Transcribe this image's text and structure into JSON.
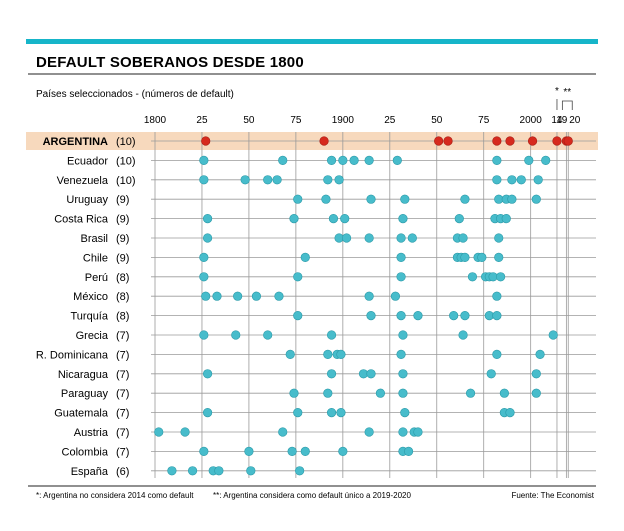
{
  "chart_data": {
    "type": "scatter",
    "title": "DEFAULT SOBERANOS DESDE 1800",
    "subtitle": "Países seleccionados  - (números de default)",
    "xlim": [
      1800,
      2022
    ],
    "x_ticks": [
      {
        "value": 1800,
        "label": "1800"
      },
      {
        "value": 1825,
        "label": "25"
      },
      {
        "value": 1850,
        "label": "50"
      },
      {
        "value": 1875,
        "label": "75"
      },
      {
        "value": 1900,
        "label": "1900"
      },
      {
        "value": 1925,
        "label": "25"
      },
      {
        "value": 1950,
        "label": "50"
      },
      {
        "value": 1975,
        "label": "75"
      },
      {
        "value": 2000,
        "label": "2000"
      },
      {
        "value": 2014,
        "label": "14"
      },
      {
        "value": 2019,
        "label": "19"
      },
      {
        "value": 2020,
        "label": "20"
      }
    ],
    "tick_marks": {
      "single": "*",
      "double": "**"
    },
    "colors": {
      "argentina": "#d62a1e",
      "others": "#47bccb",
      "highlight": "#f7d9bd",
      "accent": "#16b5c9",
      "grid": "#9a9a9a"
    },
    "series": [
      {
        "name": "ARGENTINA",
        "count": "(10)",
        "highlight": true,
        "years": [
          1827,
          1890,
          1951,
          1956,
          1982,
          1989,
          2001,
          2014,
          2019,
          2020
        ]
      },
      {
        "name": "Ecuador",
        "count": "(10)",
        "years": [
          1826,
          1868,
          1894,
          1900,
          1906,
          1914,
          1929,
          1982,
          1999,
          2008
        ]
      },
      {
        "name": "Venezuela",
        "count": "(10)",
        "years": [
          1826,
          1848,
          1860,
          1865,
          1892,
          1898,
          1982,
          1990,
          1995,
          2004
        ]
      },
      {
        "name": "Uruguay",
        "count": "(9)",
        "years": [
          1876,
          1891,
          1915,
          1933,
          1965,
          1983,
          1987,
          1990,
          2003
        ]
      },
      {
        "name": "Costa Rica",
        "count": "(9)",
        "years": [
          1828,
          1874,
          1895,
          1901,
          1932,
          1962,
          1981,
          1984,
          1987
        ]
      },
      {
        "name": "Brasil",
        "count": "(9)",
        "years": [
          1828,
          1898,
          1902,
          1914,
          1931,
          1937,
          1961,
          1964,
          1983
        ]
      },
      {
        "name": "Chile",
        "count": "(9)",
        "years": [
          1826,
          1880,
          1931,
          1961,
          1963,
          1965,
          1972,
          1974,
          1983
        ]
      },
      {
        "name": "Perú",
        "count": "(8)",
        "years": [
          1826,
          1876,
          1931,
          1969,
          1976,
          1978,
          1980,
          1984
        ]
      },
      {
        "name": "México",
        "count": "(8)",
        "years": [
          1827,
          1833,
          1844,
          1854,
          1866,
          1914,
          1928,
          1982
        ]
      },
      {
        "name": "Turquía",
        "count": "(8)",
        "years": [
          1876,
          1915,
          1931,
          1940,
          1959,
          1965,
          1978,
          1982
        ]
      },
      {
        "name": "Grecia",
        "count": "(7)",
        "years": [
          1826,
          1843,
          1860,
          1894,
          1932,
          1964,
          2012
        ]
      },
      {
        "name": "R. Dominicana",
        "count": "(7)",
        "years": [
          1872,
          1892,
          1897,
          1899,
          1931,
          1982,
          2005
        ]
      },
      {
        "name": "Nicaragua",
        "count": "(7)",
        "years": [
          1828,
          1894,
          1911,
          1915,
          1932,
          1979,
          2003
        ]
      },
      {
        "name": "Paraguay",
        "count": "(7)",
        "years": [
          1874,
          1892,
          1920,
          1932,
          1968,
          1986,
          2003
        ]
      },
      {
        "name": "Guatemala",
        "count": "(7)",
        "years": [
          1828,
          1876,
          1894,
          1899,
          1933,
          1986,
          1989
        ]
      },
      {
        "name": "Austria",
        "count": "(7)",
        "years": [
          1802,
          1816,
          1868,
          1914,
          1932,
          1938,
          1940
        ]
      },
      {
        "name": "Colombia",
        "count": "(7)",
        "years": [
          1826,
          1850,
          1873,
          1880,
          1900,
          1932,
          1935
        ]
      },
      {
        "name": "España",
        "count": "(6)",
        "years": [
          1809,
          1820,
          1831,
          1834,
          1851,
          1877
        ]
      }
    ]
  },
  "footnotes": {
    "left": "*: Argentina no considera 2014 como default",
    "middle": "**: Argentina considera como default único a 2019-2020",
    "right": "Fuente: The Economist"
  }
}
